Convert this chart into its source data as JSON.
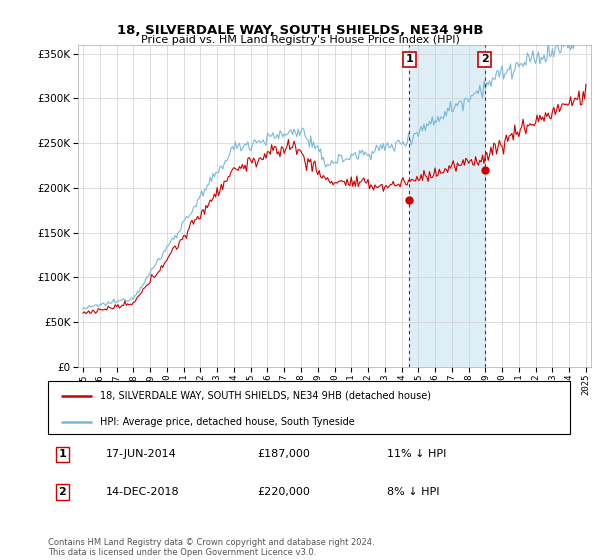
{
  "title": "18, SILVERDALE WAY, SOUTH SHIELDS, NE34 9HB",
  "subtitle": "Price paid vs. HM Land Registry's House Price Index (HPI)",
  "legend_line1": "18, SILVERDALE WAY, SOUTH SHIELDS, NE34 9HB (detached house)",
  "legend_line2": "HPI: Average price, detached house, South Tyneside",
  "annotation1_label": "1",
  "annotation1_date": "17-JUN-2014",
  "annotation1_price": 187000,
  "annotation1_pct": "11% ↓ HPI",
  "annotation2_label": "2",
  "annotation2_date": "14-DEC-2018",
  "annotation2_price": 220000,
  "annotation2_pct": "8% ↓ HPI",
  "footer": "Contains HM Land Registry data © Crown copyright and database right 2024.\nThis data is licensed under the Open Government Licence v3.0.",
  "hpi_color": "#7ab8d9",
  "sale_color": "#cc0000",
  "annotation_color": "#cc0000",
  "shade_color": "#ddeef7",
  "ylim_min": 0,
  "ylim_max": 360000,
  "yticks": [
    0,
    50000,
    100000,
    150000,
    200000,
    250000,
    300000,
    350000
  ],
  "x_start_year": 1995,
  "x_end_year": 2025,
  "t1_year": 2014.458,
  "t2_year": 2018.958,
  "t1_price": 187000,
  "t2_price": 220000
}
